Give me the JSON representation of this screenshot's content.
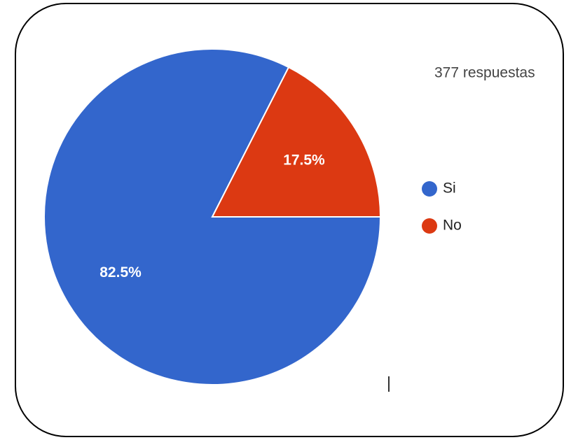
{
  "chart_data": {
    "type": "pie",
    "subtitle": "377 respuestas",
    "categories": [
      "Si",
      "No"
    ],
    "values": [
      82.5,
      17.5
    ],
    "value_labels": [
      "82.5%",
      "17.5%"
    ],
    "colors": [
      "#3366cc",
      "#dc3912"
    ],
    "legend": "right"
  }
}
